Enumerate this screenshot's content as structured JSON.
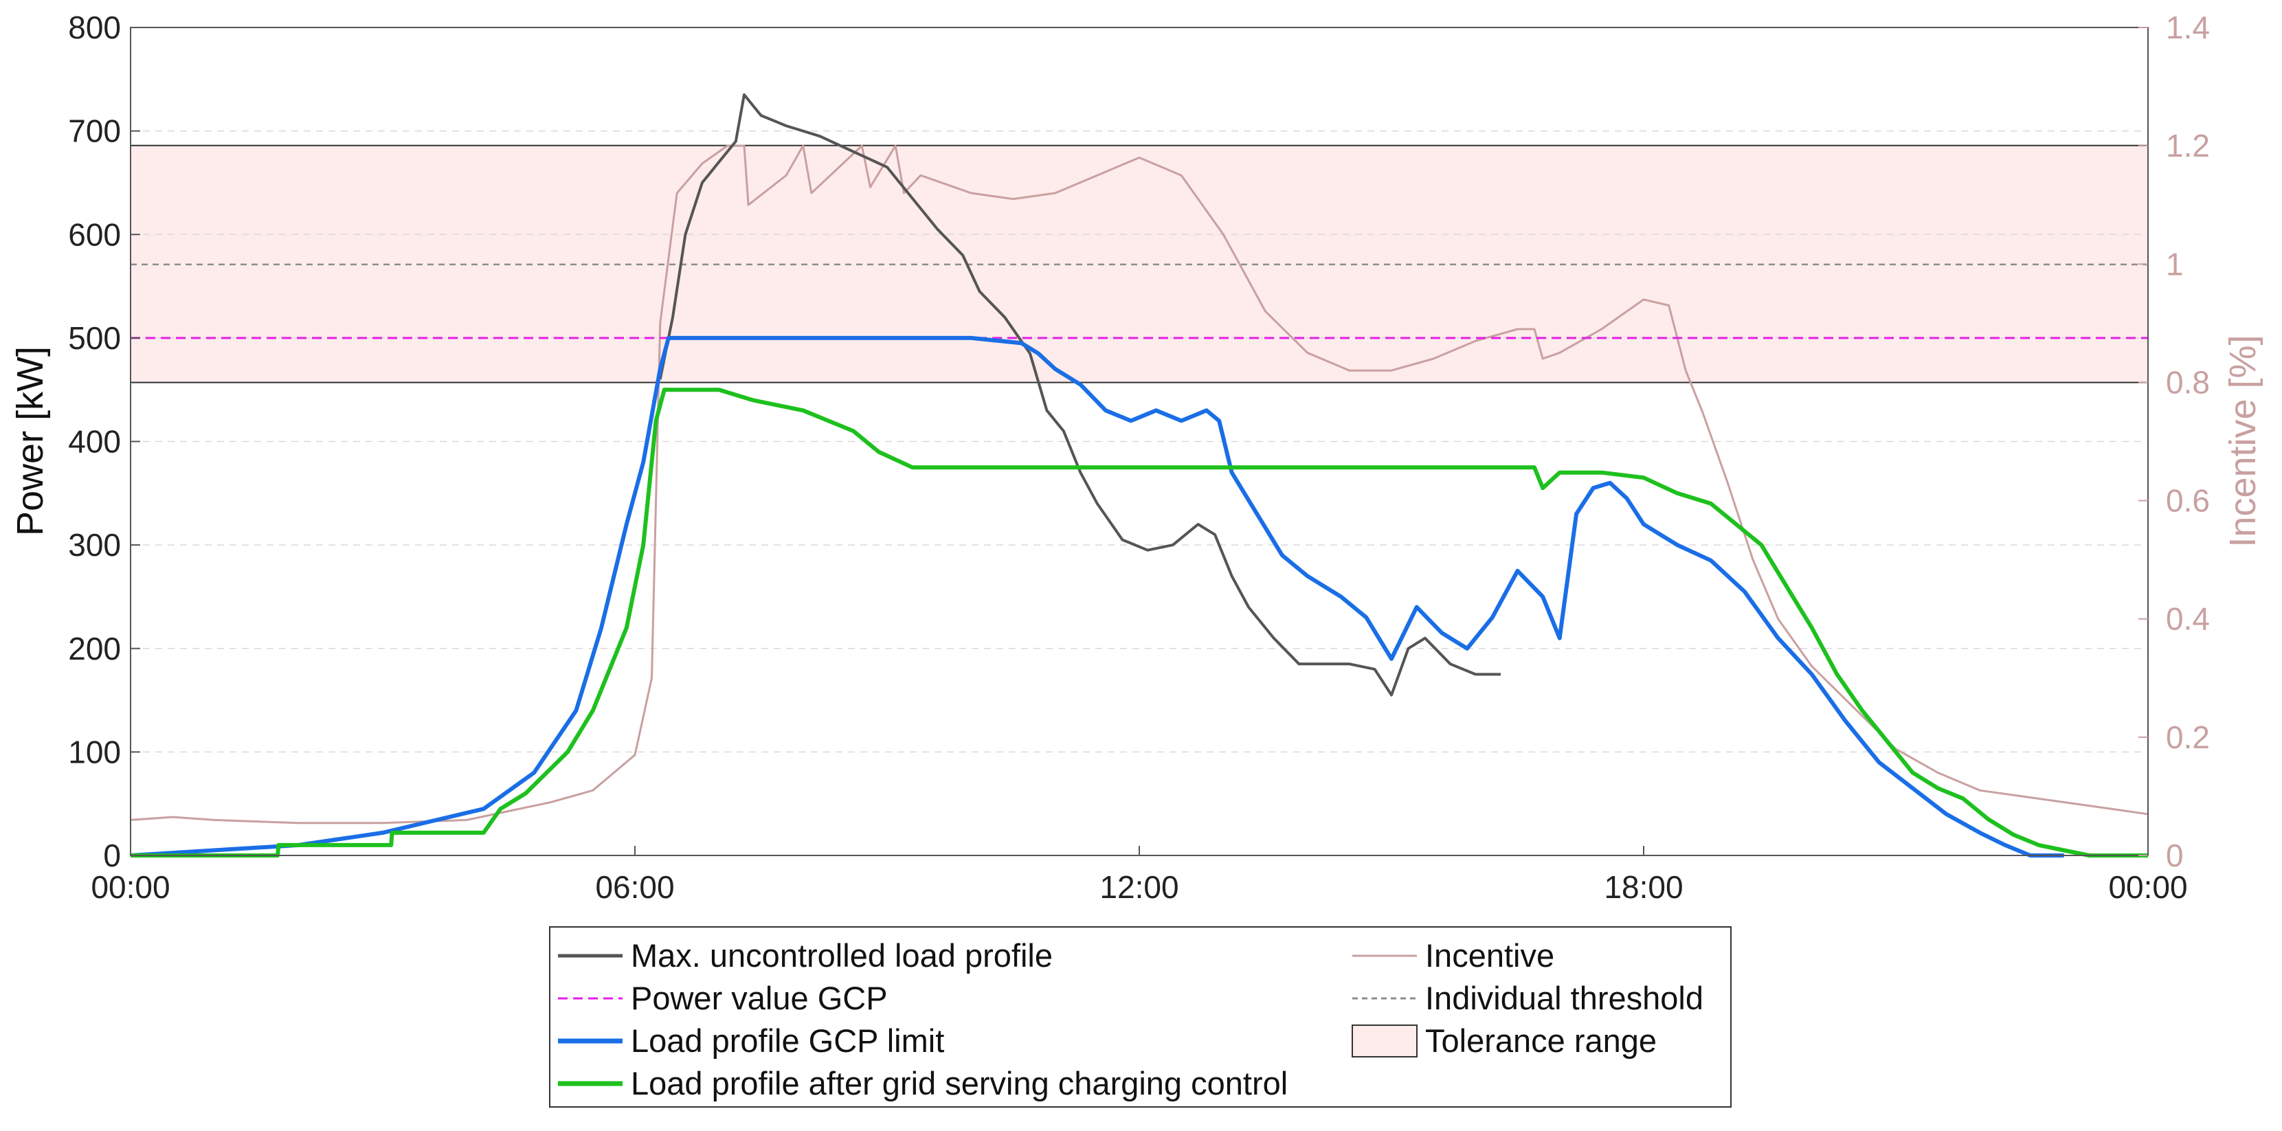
{
  "chart_data": {
    "type": "line",
    "title": "",
    "xlabel": "",
    "ylabel": "Power [kW]",
    "y2label": "Incentive [%]",
    "xlim": [
      0,
      24
    ],
    "ylim": [
      0,
      800
    ],
    "y2lim": [
      0,
      1.4
    ],
    "xticks": [
      0,
      6,
      12,
      18,
      24
    ],
    "xtick_labels": [
      "00:00",
      "06:00",
      "12:00",
      "18:00",
      "00:00"
    ],
    "yticks": [
      "0",
      "100",
      "200",
      "300",
      "400",
      "500",
      "600",
      "700",
      "800"
    ],
    "y2ticks": [
      "0",
      "0.2",
      "0.4",
      "0.6",
      "0.8",
      "1",
      "1.2",
      "1.4"
    ],
    "grid": "horizontal dashed",
    "tolerance_range": [
      457,
      686
    ],
    "power_value_gcp": 500,
    "individual_threshold": 571,
    "colors": {
      "uncontrolled": "#555555",
      "incentive": "#c9a0a0",
      "gcp": "#e61ee6",
      "threshold": "#8c8c8c",
      "gcp_limit": "#1a6ee6",
      "after_control": "#1ec01e",
      "tolerance_fill": "#fdeceb",
      "tolerance_edge": "#333333"
    },
    "series": [
      {
        "name": "Max. uncontrolled load profile",
        "key": "uncontrolled",
        "axis": "left",
        "x": [
          6.3,
          6.45,
          6.6,
          6.8,
          7.0,
          7.2,
          7.3,
          7.5,
          7.8,
          8.2,
          8.6,
          9.0,
          9.3,
          9.6,
          9.9,
          10.1,
          10.4,
          10.7,
          10.9,
          11.1,
          11.3,
          11.5,
          11.8,
          12.1,
          12.4,
          12.7,
          12.9,
          13.1,
          13.3,
          13.6,
          13.9,
          14.2,
          14.5,
          14.8,
          15.0,
          15.2,
          15.4,
          15.7,
          16.0,
          16.3
        ],
        "y": [
          460,
          520,
          600,
          650,
          670,
          690,
          735,
          715,
          705,
          695,
          680,
          665,
          635,
          605,
          580,
          545,
          520,
          485,
          430,
          410,
          370,
          340,
          305,
          295,
          300,
          320,
          310,
          270,
          240,
          210,
          185,
          185,
          185,
          180,
          155,
          200,
          210,
          185,
          175,
          175
        ]
      },
      {
        "name": "Incentive",
        "key": "incentive",
        "axis": "right",
        "x": [
          0,
          0.5,
          1,
          2,
          3,
          4,
          4.5,
          5,
          5.5,
          6.0,
          6.2,
          6.3,
          6.5,
          6.8,
          7.1,
          7.3,
          7.35,
          7.8,
          8.0,
          8.1,
          8.7,
          8.8,
          9.1,
          9.2,
          9.4,
          10.0,
          10.5,
          11.0,
          11.5,
          12.0,
          12.5,
          13.0,
          13.5,
          14.0,
          14.5,
          15.0,
          15.5,
          16.0,
          16.5,
          16.7,
          16.8,
          17.0,
          17.5,
          18.0,
          18.3,
          18.5,
          18.7,
          19.0,
          19.3,
          19.6,
          20.0,
          20.5,
          21.0,
          21.5,
          22.0,
          22.5,
          23.0,
          23.5,
          24.0
        ],
        "y": [
          0.06,
          0.065,
          0.06,
          0.055,
          0.055,
          0.06,
          0.075,
          0.09,
          0.11,
          0.17,
          0.3,
          0.9,
          1.12,
          1.17,
          1.2,
          1.2,
          1.1,
          1.15,
          1.2,
          1.12,
          1.2,
          1.13,
          1.2,
          1.12,
          1.15,
          1.12,
          1.11,
          1.12,
          1.15,
          1.18,
          1.15,
          1.05,
          0.92,
          0.85,
          0.82,
          0.82,
          0.84,
          0.87,
          0.89,
          0.89,
          0.84,
          0.85,
          0.89,
          0.94,
          0.93,
          0.82,
          0.75,
          0.63,
          0.5,
          0.4,
          0.32,
          0.25,
          0.18,
          0.14,
          0.11,
          0.1,
          0.09,
          0.08,
          0.07
        ]
      },
      {
        "name": "Power value GCP",
        "key": "gcp",
        "axis": "left",
        "x": [
          0,
          24
        ],
        "y": [
          500,
          500
        ]
      },
      {
        "name": "Individual threshold",
        "key": "threshold",
        "axis": "left",
        "x": [
          0,
          24
        ],
        "y": [
          571,
          571
        ]
      },
      {
        "name": "Load profile GCP limit",
        "key": "gcp_limit",
        "axis": "left",
        "x": [
          0,
          2,
          3,
          4.2,
          4.8,
          5.3,
          5.6,
          5.9,
          6.1,
          6.3,
          6.4,
          7.0,
          8.0,
          9.0,
          10.0,
          10.6,
          10.8,
          11.0,
          11.3,
          11.6,
          11.9,
          12.2,
          12.5,
          12.8,
          12.95,
          13.1,
          13.4,
          13.7,
          14.0,
          14.4,
          14.7,
          15.0,
          15.3,
          15.6,
          15.9,
          16.2,
          16.5,
          16.8,
          17.0,
          17.2,
          17.4,
          17.6,
          17.8,
          18.0,
          18.4,
          18.8,
          19.2,
          19.6,
          20.0,
          20.4,
          20.8,
          21.2,
          21.6,
          22.0,
          22.3,
          22.6,
          23.0
        ],
        "y": [
          0,
          10,
          22,
          45,
          80,
          140,
          220,
          320,
          380,
          470,
          500,
          500,
          500,
          500,
          500,
          495,
          485,
          470,
          455,
          430,
          420,
          430,
          420,
          430,
          420,
          370,
          330,
          290,
          270,
          250,
          230,
          190,
          240,
          215,
          200,
          230,
          275,
          250,
          210,
          330,
          355,
          360,
          345,
          320,
          300,
          285,
          255,
          210,
          175,
          130,
          90,
          65,
          40,
          22,
          10,
          0,
          0
        ]
      },
      {
        "name": "Load profile after grid serving charging control",
        "key": "after_control",
        "axis": "left",
        "x": [
          0,
          1.75,
          1.76,
          3.1,
          3.11,
          4.2,
          4.4,
          4.7,
          5.2,
          5.5,
          5.7,
          5.9,
          6.1,
          6.25,
          6.35,
          7.0,
          7.4,
          8.0,
          8.6,
          8.9,
          9.3,
          9.5,
          10.0,
          11.0,
          12.0,
          13.0,
          14.0,
          15.0,
          16.0,
          16.7,
          16.8,
          17.0,
          17.5,
          18.0,
          18.4,
          18.8,
          19.1,
          19.4,
          19.7,
          20.0,
          20.3,
          20.6,
          20.9,
          21.2,
          21.5,
          21.8,
          22.1,
          22.4,
          22.7,
          23.0,
          23.3,
          24.0
        ],
        "y": [
          0,
          0,
          10,
          10,
          22,
          22,
          45,
          60,
          100,
          140,
          180,
          220,
          300,
          420,
          450,
          450,
          440,
          430,
          410,
          390,
          375,
          375,
          375,
          375,
          375,
          375,
          375,
          375,
          375,
          375,
          355,
          370,
          370,
          365,
          350,
          340,
          320,
          300,
          260,
          220,
          175,
          140,
          110,
          80,
          65,
          55,
          35,
          20,
          10,
          5,
          0,
          0
        ]
      }
    ]
  },
  "legend": {
    "items": [
      {
        "label": "Max. uncontrolled load profile",
        "key": "uncontrolled"
      },
      {
        "label": "Incentive",
        "key": "incentive"
      },
      {
        "label": "Power value GCP",
        "key": "gcp"
      },
      {
        "label": "Individual threshold",
        "key": "threshold"
      },
      {
        "label": "Load profile GCP limit",
        "key": "gcp_limit"
      },
      {
        "label": "Tolerance range",
        "key": "tolerance"
      },
      {
        "label": "Load profile after grid serving charging control",
        "key": "after_control"
      }
    ]
  }
}
